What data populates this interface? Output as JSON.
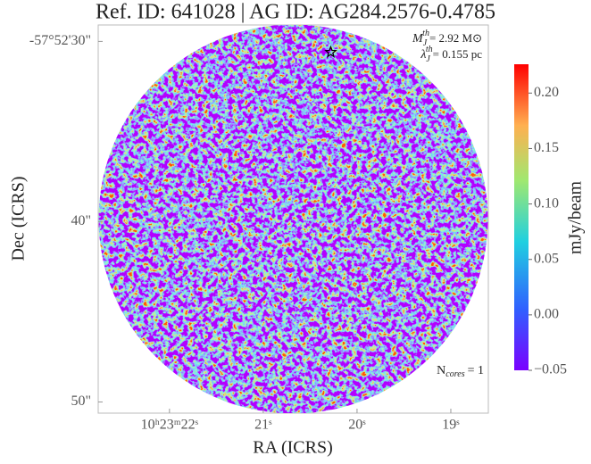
{
  "chart_data": {
    "type": "image",
    "title": "Ref. ID: 641028 | AG ID: AG284.2576-0.4785",
    "x_label": "RA (ICRS)",
    "y_label": "Dec (ICRS)",
    "colorbar_label": "mJy/beam",
    "xlim": [
      22.76,
      18.6
    ],
    "xticks": [
      {
        "value": 22,
        "label": "10ʰ23ᵐ22ˢ"
      },
      {
        "value": 21,
        "label": "21ˢ"
      },
      {
        "value": 20,
        "label": "20ˢ"
      },
      {
        "value": 19,
        "label": "19ˢ"
      }
    ],
    "ylim": [
      29.09,
      50.62
    ],
    "yticks": [
      {
        "value": 30,
        "label": "-57°52'30\""
      },
      {
        "value": 40,
        "label": "40\""
      },
      {
        "value": 50,
        "label": "50\""
      }
    ],
    "clim": [
      -0.05,
      0.226
    ],
    "cticks": [
      {
        "value": 0.2,
        "label": "0.20"
      },
      {
        "value": 0.15,
        "label": "0.15"
      },
      {
        "value": 0.1,
        "label": "0.10"
      },
      {
        "value": 0.05,
        "label": "0.05"
      },
      {
        "value": 0,
        "label": "0.00"
      },
      {
        "value": -0.05,
        "label": "−0.05"
      }
    ],
    "mass": {
      "base": "M",
      "sub": "J",
      "sup": "th",
      "text": "= 2.92 M⊙"
    },
    "length": {
      "base": "λ",
      "sub": "J",
      "sup": "th",
      "text": "= 0.155 pc"
    },
    "cores_label": {
      "base": "N",
      "sub": "cores",
      "text": "= 1"
    },
    "cores": {
      "x": [
        20.28
      ],
      "y": [
        30.6
      ]
    }
  }
}
